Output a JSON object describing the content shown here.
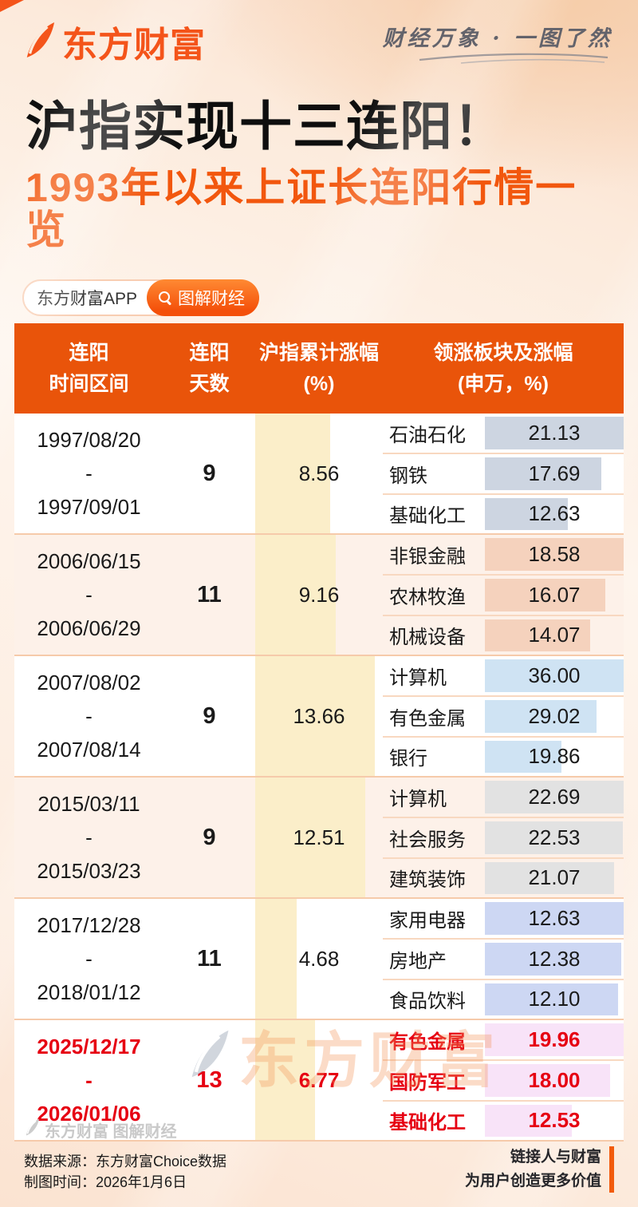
{
  "brand": {
    "logo_text": "东方财富",
    "tagline": "财经万象 · 一图了然"
  },
  "headline": {
    "title": "沪指实现十三连阳！",
    "subtitle": "1993年以来上证长连阳行情一览"
  },
  "pills": {
    "app_label": "东方财富APP",
    "column_label": "图解财经"
  },
  "table": {
    "header": [
      {
        "line1": "连阳",
        "line2": "时间区间"
      },
      {
        "line1": "连阳",
        "line2": "天数"
      },
      {
        "line1": "沪指累计涨幅",
        "line2": "(%)"
      },
      {
        "line1": "领涨板块及涨幅",
        "line2": "(申万，%)"
      }
    ],
    "gain_axis_max": 13.66,
    "rows": [
      {
        "start": "1997/08/20",
        "dash": "-",
        "end": "1997/09/01",
        "days": "9",
        "gain": "8.56",
        "gain_num": 8.56,
        "bar_color": "#cdd5e1",
        "bg": "#ffffff",
        "text_color": "#1a1a1a",
        "highlight": false,
        "sectors": [
          {
            "name": "石油石化",
            "value": "21.13",
            "num": 21.13
          },
          {
            "name": "钢铁",
            "value": "17.69",
            "num": 17.69
          },
          {
            "name": "基础化工",
            "value": "12.63",
            "num": 12.63
          }
        ]
      },
      {
        "start": "2006/06/15",
        "dash": "-",
        "end": "2006/06/29",
        "days": "11",
        "gain": "9.16",
        "gain_num": 9.16,
        "bar_color": "#f5d2bd",
        "bg": "#fdf1e9",
        "text_color": "#1a1a1a",
        "highlight": false,
        "sectors": [
          {
            "name": "非银金融",
            "value": "18.58",
            "num": 18.58
          },
          {
            "name": "农林牧渔",
            "value": "16.07",
            "num": 16.07
          },
          {
            "name": "机械设备",
            "value": "14.07",
            "num": 14.07
          }
        ]
      },
      {
        "start": "2007/08/02",
        "dash": "-",
        "end": "2007/08/14",
        "days": "9",
        "gain": "13.66",
        "gain_num": 13.66,
        "bar_color": "#cfe3f3",
        "bg": "#ffffff",
        "text_color": "#1a1a1a",
        "highlight": false,
        "sectors": [
          {
            "name": "计算机",
            "value": "36.00",
            "num": 36.0
          },
          {
            "name": "有色金属",
            "value": "29.02",
            "num": 29.02
          },
          {
            "name": "银行",
            "value": "19.86",
            "num": 19.86
          }
        ]
      },
      {
        "start": "2015/03/11",
        "dash": "-",
        "end": "2015/03/23",
        "days": "9",
        "gain": "12.51",
        "gain_num": 12.51,
        "bar_color": "#e2e2e2",
        "bg": "#fdf1e9",
        "text_color": "#1a1a1a",
        "highlight": false,
        "sectors": [
          {
            "name": "计算机",
            "value": "22.69",
            "num": 22.69
          },
          {
            "name": "社会服务",
            "value": "22.53",
            "num": 22.53
          },
          {
            "name": "建筑装饰",
            "value": "21.07",
            "num": 21.07
          }
        ]
      },
      {
        "start": "2017/12/28",
        "dash": "-",
        "end": "2018/01/12",
        "days": "11",
        "gain": "4.68",
        "gain_num": 4.68,
        "bar_color": "#cdd7f3",
        "bg": "#ffffff",
        "text_color": "#1a1a1a",
        "highlight": false,
        "sectors": [
          {
            "name": "家用电器",
            "value": "12.63",
            "num": 12.63
          },
          {
            "name": "房地产",
            "value": "12.38",
            "num": 12.38
          },
          {
            "name": "食品饮料",
            "value": "12.10",
            "num": 12.1
          }
        ]
      },
      {
        "start": "2025/12/17",
        "dash": "-",
        "end": "2026/01/06",
        "days": "13",
        "gain": "6.77",
        "gain_num": 6.77,
        "bar_color": "#f8e3f8",
        "bg": "#ffffff",
        "text_color": "#e60012",
        "highlight": true,
        "sectors": [
          {
            "name": "有色金属",
            "value": "19.96",
            "num": 19.96
          },
          {
            "name": "国防军工",
            "value": "18.00",
            "num": 18.0
          },
          {
            "name": "基础化工",
            "value": "12.53",
            "num": 12.53
          }
        ]
      }
    ]
  },
  "watermark": "东方财富",
  "footer": {
    "logo_text": "东方财富 图解财经",
    "source": "数据来源：东方财富Choice数据",
    "date": "制图时间：2026年1月6日",
    "slogan_line1": "链接人与财富",
    "slogan_line2": "为用户创造更多价值"
  },
  "colors": {
    "brand_orange": "#f4541a",
    "header_orange": "#e9540a",
    "gain_bar": "#fbeec9",
    "highlight_red": "#e60012"
  },
  "chart_data": {
    "type": "table",
    "title": "沪指实现十三连阳！",
    "subtitle": "1993年以来上证长连阳行情一览",
    "columns": [
      "连阳时间区间",
      "连阳天数",
      "沪指累计涨幅(%)",
      "领涨板块及涨幅(申万，%)"
    ],
    "rows": [
      {
        "period": "1997/08/20 - 1997/09/01",
        "days": 9,
        "gain_pct": 8.56,
        "leading_sectors": [
          [
            "石油石化",
            21.13
          ],
          [
            "钢铁",
            17.69
          ],
          [
            "基础化工",
            12.63
          ]
        ]
      },
      {
        "period": "2006/06/15 - 2006/06/29",
        "days": 11,
        "gain_pct": 9.16,
        "leading_sectors": [
          [
            "非银金融",
            18.58
          ],
          [
            "农林牧渔",
            16.07
          ],
          [
            "机械设备",
            14.07
          ]
        ]
      },
      {
        "period": "2007/08/02 - 2007/08/14",
        "days": 9,
        "gain_pct": 13.66,
        "leading_sectors": [
          [
            "计算机",
            36.0
          ],
          [
            "有色金属",
            29.02
          ],
          [
            "银行",
            19.86
          ]
        ]
      },
      {
        "period": "2015/03/11 - 2015/03/23",
        "days": 9,
        "gain_pct": 12.51,
        "leading_sectors": [
          [
            "计算机",
            22.69
          ],
          [
            "社会服务",
            22.53
          ],
          [
            "建筑装饰",
            21.07
          ]
        ]
      },
      {
        "period": "2017/12/28 - 2018/01/12",
        "days": 11,
        "gain_pct": 4.68,
        "leading_sectors": [
          [
            "家用电器",
            12.63
          ],
          [
            "房地产",
            12.38
          ],
          [
            "食品饮料",
            12.1
          ]
        ]
      },
      {
        "period": "2025/12/17 - 2026/01/06",
        "days": 13,
        "gain_pct": 6.77,
        "leading_sectors": [
          [
            "有色金属",
            19.96
          ],
          [
            "国防军工",
            18.0
          ],
          [
            "基础化工",
            12.53
          ]
        ]
      }
    ],
    "highlight_row_period": "2025/12/17 - 2026/01/06",
    "bar_scaling": "gain bars scaled to max 13.66; sector bars scaled to each group's max"
  }
}
